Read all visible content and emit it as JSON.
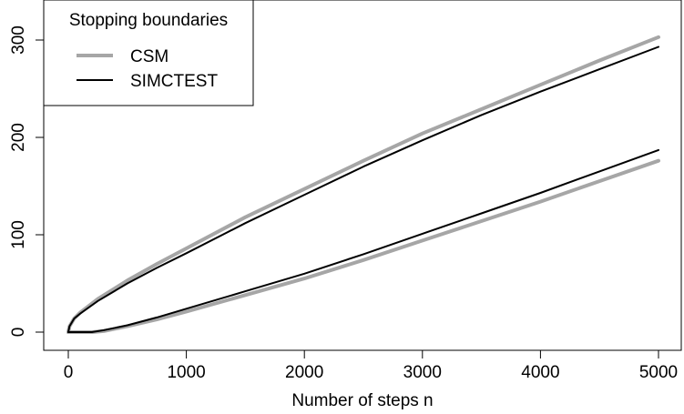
{
  "chart_data": {
    "type": "line",
    "title": "",
    "xlabel": "Number of steps n",
    "ylabel": "",
    "xlim": [
      0,
      5000
    ],
    "ylim": [
      0,
      330
    ],
    "xticks": [
      0,
      1000,
      2000,
      3000,
      4000,
      5000
    ],
    "yticks": [
      0,
      100,
      200,
      300
    ],
    "grid": false,
    "legend": {
      "title": "Stopping boundaries",
      "placement": "top-left",
      "entries": [
        {
          "name": "CSM",
          "color": "#a6a6a6"
        },
        {
          "name": "SIMCTEST",
          "color": "#000000"
        }
      ]
    },
    "series": [
      {
        "name": "CSM",
        "boundary": "upper",
        "color": "#a6a6a6",
        "x": [
          0,
          10,
          50,
          100,
          250,
          500,
          750,
          1000,
          1500,
          2000,
          2500,
          3000,
          3500,
          4000,
          4500,
          5000
        ],
        "y": [
          0,
          6,
          14,
          20,
          34,
          53,
          70,
          86,
          118,
          147,
          176,
          204,
          229,
          254,
          279,
          303
        ]
      },
      {
        "name": "SIMCTEST",
        "boundary": "upper",
        "color": "#000000",
        "x": [
          0,
          10,
          50,
          100,
          250,
          500,
          750,
          1000,
          1500,
          2000,
          2500,
          3000,
          3500,
          4000,
          4500,
          5000
        ],
        "y": [
          0,
          6,
          14,
          19,
          32,
          50,
          66,
          81,
          112,
          141,
          170,
          197,
          223,
          247,
          270,
          293
        ]
      },
      {
        "name": "CSM",
        "boundary": "lower",
        "color": "#a6a6a6",
        "x": [
          0,
          100,
          200,
          300,
          500,
          750,
          1000,
          1500,
          2000,
          2500,
          3000,
          3500,
          4000,
          4500,
          5000
        ],
        "y": [
          0,
          0,
          0,
          1,
          6,
          13,
          21,
          38,
          55,
          74,
          94,
          114,
          134,
          155,
          176
        ]
      },
      {
        "name": "SIMCTEST",
        "boundary": "lower",
        "color": "#000000",
        "x": [
          0,
          100,
          200,
          300,
          500,
          750,
          1000,
          1500,
          2000,
          2500,
          3000,
          3500,
          4000,
          4500,
          5000
        ],
        "y": [
          0,
          0,
          0,
          2,
          7,
          15,
          24,
          42,
          60,
          80,
          101,
          122,
          143,
          165,
          187
        ]
      }
    ]
  }
}
